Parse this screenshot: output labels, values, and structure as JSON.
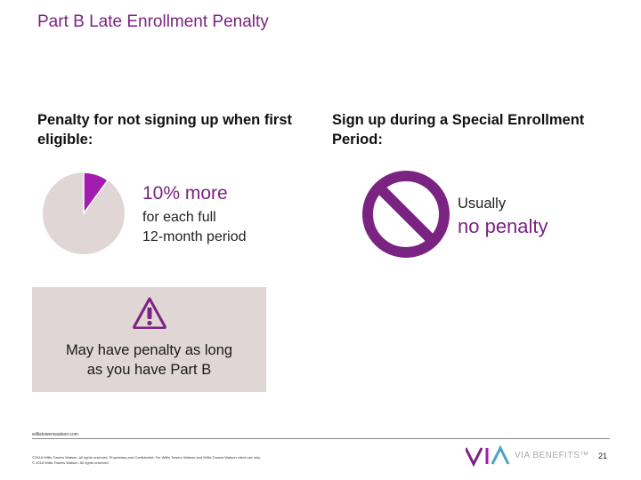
{
  "title": "Part B Late Enrollment Penalty",
  "left": {
    "heading": "Penalty for not signing up when first eligible:",
    "percent": "10% more",
    "percent_sub_1": "for each full",
    "percent_sub_2": "12-month period",
    "pie_slice_fraction": 0.1
  },
  "right": {
    "heading": "Sign up during a Special Enrollment Period:",
    "usually": "Usually",
    "no_penalty": "no penalty"
  },
  "note": {
    "line1": "May have penalty as long",
    "line2": "as you have Part B"
  },
  "footer": {
    "url": "willistowerswatson.com",
    "legal_1": "©2018 Willis Towers Watson. All rights reserved. Proprietary and Confidential. For Willis Towers Watson and Willis Towers Watson client use only.",
    "legal_2": "© 2018 Willis Towers Watson. All rights reserved.",
    "logo_text": "VIA BENEFITS™",
    "page_number": "21"
  },
  "colors": {
    "accent": "#7b2382",
    "pie_base": "#e0d6d5",
    "box_bg": "#e0d6d5"
  }
}
